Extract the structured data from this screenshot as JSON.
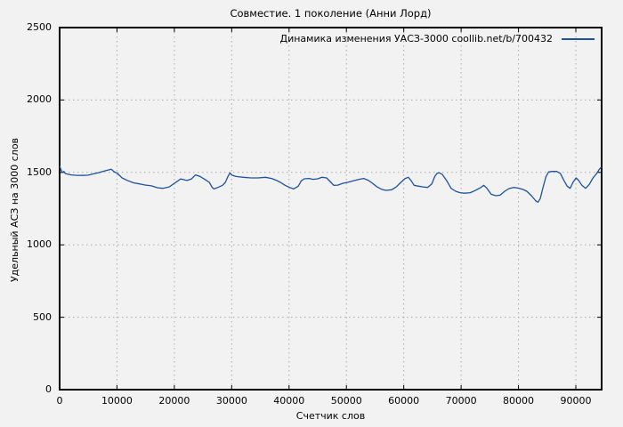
{
  "title": "Совместие. 1 поколение (Анни Лорд)",
  "legend": {
    "label": "Динамика изменения УАСЗ-3000 coollib.net/b/700432"
  },
  "x_axis": {
    "label": "Счетчик слов",
    "tick_labels": [
      "0",
      "10000",
      "20000",
      "30000",
      "40000",
      "50000",
      "60000",
      "70000",
      "80000",
      "90000"
    ]
  },
  "y_axis": {
    "label": "Удельный АСЗ на 3000 слов",
    "tick_labels": [
      "0",
      "500",
      "1000",
      "1500",
      "2000",
      "2500"
    ]
  },
  "colors": {
    "background": "#f2f2f2",
    "border": "#000000",
    "grid": "#a9a9a9",
    "line": "#1d519f",
    "text": "#000000"
  },
  "chart_data": {
    "type": "line",
    "title": "Совместие. 1 поколение (Анни Лорд)",
    "xlabel": "Счетчик слов",
    "ylabel": "Удельный АСЗ на 3000 слов",
    "xlim": [
      0,
      94500
    ],
    "ylim": [
      0,
      2500
    ],
    "x_ticks": [
      0,
      10000,
      20000,
      30000,
      40000,
      50000,
      60000,
      70000,
      80000,
      90000
    ],
    "y_ticks": [
      0,
      500,
      1000,
      1500,
      2000,
      2500
    ],
    "grid": true,
    "grid_style": "dotted",
    "legend_position": "top-right-inside",
    "series": [
      {
        "name": "Динамика изменения УАСЗ-3000 coollib.net/b/700432",
        "color": "#1d519f",
        "points": [
          [
            0,
            1544
          ],
          [
            250,
            1518
          ],
          [
            500,
            1499
          ],
          [
            750,
            1507
          ],
          [
            1000,
            1492
          ],
          [
            2000,
            1483
          ],
          [
            3000,
            1480
          ],
          [
            4000,
            1479
          ],
          [
            5000,
            1481
          ],
          [
            5600,
            1487
          ],
          [
            6700,
            1497
          ],
          [
            7800,
            1510
          ],
          [
            9000,
            1522
          ],
          [
            9500,
            1505
          ],
          [
            10100,
            1492
          ],
          [
            10900,
            1462
          ],
          [
            11800,
            1445
          ],
          [
            12900,
            1428
          ],
          [
            14000,
            1420
          ],
          [
            14900,
            1413
          ],
          [
            16000,
            1407
          ],
          [
            17100,
            1394
          ],
          [
            18000,
            1390
          ],
          [
            19100,
            1400
          ],
          [
            20200,
            1430
          ],
          [
            21100,
            1455
          ],
          [
            22200,
            1444
          ],
          [
            23000,
            1455
          ],
          [
            23700,
            1483
          ],
          [
            24500,
            1472
          ],
          [
            25300,
            1452
          ],
          [
            26100,
            1431
          ],
          [
            26600,
            1396
          ],
          [
            26900,
            1386
          ],
          [
            27600,
            1396
          ],
          [
            28400,
            1411
          ],
          [
            28900,
            1431
          ],
          [
            29350,
            1472
          ],
          [
            29700,
            1497
          ],
          [
            30000,
            1482
          ],
          [
            30750,
            1472
          ],
          [
            32050,
            1466
          ],
          [
            33350,
            1462
          ],
          [
            34600,
            1462
          ],
          [
            35900,
            1466
          ],
          [
            36950,
            1458
          ],
          [
            37750,
            1446
          ],
          [
            38500,
            1431
          ],
          [
            39300,
            1411
          ],
          [
            40100,
            1396
          ],
          [
            40800,
            1386
          ],
          [
            41600,
            1405
          ],
          [
            42150,
            1442
          ],
          [
            42650,
            1456
          ],
          [
            43450,
            1458
          ],
          [
            44200,
            1452
          ],
          [
            45000,
            1456
          ],
          [
            45750,
            1466
          ],
          [
            46550,
            1462
          ],
          [
            47300,
            1431
          ],
          [
            47800,
            1411
          ],
          [
            48500,
            1412
          ],
          [
            49400,
            1425
          ],
          [
            50200,
            1431
          ],
          [
            51200,
            1442
          ],
          [
            52200,
            1452
          ],
          [
            53000,
            1458
          ],
          [
            53800,
            1446
          ],
          [
            54550,
            1425
          ],
          [
            55350,
            1400
          ],
          [
            56100,
            1384
          ],
          [
            56900,
            1376
          ],
          [
            57900,
            1380
          ],
          [
            58700,
            1400
          ],
          [
            59500,
            1431
          ],
          [
            60250,
            1458
          ],
          [
            60800,
            1466
          ],
          [
            61300,
            1442
          ],
          [
            61800,
            1411
          ],
          [
            62600,
            1405
          ],
          [
            63350,
            1400
          ],
          [
            64150,
            1396
          ],
          [
            64900,
            1421
          ],
          [
            65400,
            1472
          ],
          [
            65800,
            1493
          ],
          [
            66200,
            1497
          ],
          [
            66700,
            1487
          ],
          [
            67500,
            1442
          ],
          [
            68250,
            1390
          ],
          [
            69050,
            1370
          ],
          [
            69800,
            1360
          ],
          [
            70600,
            1356
          ],
          [
            71600,
            1360
          ],
          [
            72400,
            1374
          ],
          [
            73400,
            1395
          ],
          [
            73950,
            1411
          ],
          [
            74500,
            1390
          ],
          [
            75250,
            1349
          ],
          [
            76050,
            1339
          ],
          [
            76800,
            1343
          ],
          [
            77600,
            1370
          ],
          [
            78350,
            1388
          ],
          [
            79150,
            1396
          ],
          [
            79900,
            1392
          ],
          [
            80700,
            1384
          ],
          [
            81450,
            1370
          ],
          [
            82250,
            1339
          ],
          [
            83050,
            1302
          ],
          [
            83400,
            1294
          ],
          [
            83800,
            1319
          ],
          [
            84300,
            1400
          ],
          [
            84800,
            1472
          ],
          [
            85250,
            1503
          ],
          [
            85850,
            1507
          ],
          [
            86650,
            1507
          ],
          [
            87300,
            1493
          ],
          [
            87950,
            1442
          ],
          [
            88500,
            1405
          ],
          [
            89000,
            1390
          ],
          [
            89500,
            1431
          ],
          [
            90050,
            1462
          ],
          [
            90550,
            1442
          ],
          [
            91050,
            1411
          ],
          [
            91700,
            1390
          ],
          [
            92350,
            1417
          ],
          [
            93000,
            1462
          ],
          [
            93650,
            1493
          ],
          [
            94150,
            1524
          ],
          [
            94500,
            1538
          ]
        ]
      }
    ]
  }
}
